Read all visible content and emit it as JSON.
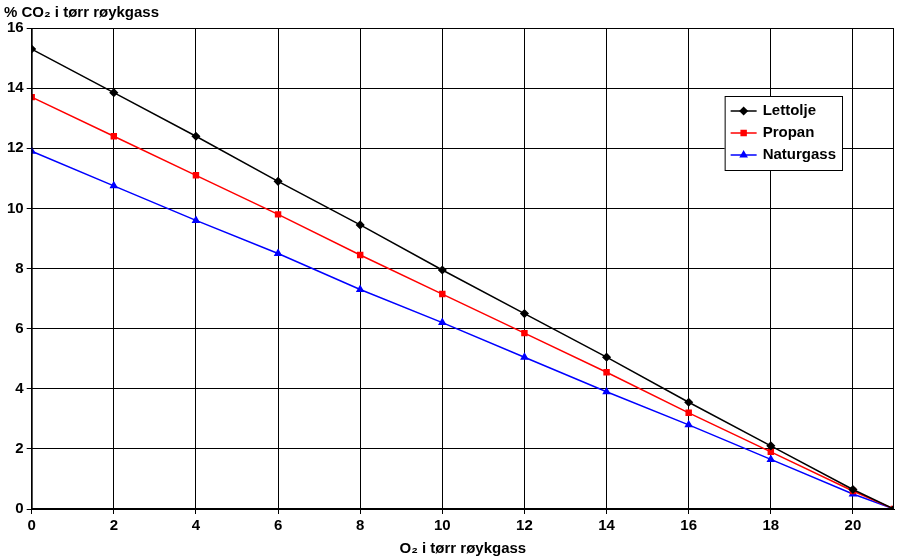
{
  "chart_data": {
    "type": "line",
    "y_label": "% CO₂ i tørr røykgass",
    "x_label": "O₂ i tørr røykgass",
    "x": [
      0,
      2,
      4,
      6,
      8,
      10,
      12,
      14,
      16,
      18,
      20,
      21
    ],
    "series": [
      {
        "name": "Lettolje",
        "color": "#000000",
        "marker": "diamond",
        "values": [
          15.3,
          13.85,
          12.4,
          10.9,
          9.45,
          7.95,
          6.5,
          5.05,
          3.55,
          2.1,
          0.65,
          0
        ]
      },
      {
        "name": "Propan",
        "color": "#ff0000",
        "marker": "square",
        "values": [
          13.7,
          12.4,
          11.1,
          9.8,
          8.45,
          7.15,
          5.85,
          4.55,
          3.2,
          1.9,
          0.6,
          0
        ]
      },
      {
        "name": "Naturgass",
        "color": "#0000ff",
        "marker": "triangle",
        "values": [
          11.9,
          10.75,
          9.6,
          8.5,
          7.3,
          6.2,
          5.05,
          3.9,
          2.8,
          1.65,
          0.5,
          0
        ]
      }
    ],
    "xlim": [
      0,
      21
    ],
    "xticks": [
      0,
      2,
      4,
      6,
      8,
      10,
      12,
      14,
      16,
      18,
      20
    ],
    "ylim": [
      0,
      16
    ],
    "yticks": [
      0,
      2,
      4,
      6,
      8,
      10,
      12,
      14,
      16
    ],
    "grid": true,
    "legend": "upper right"
  }
}
